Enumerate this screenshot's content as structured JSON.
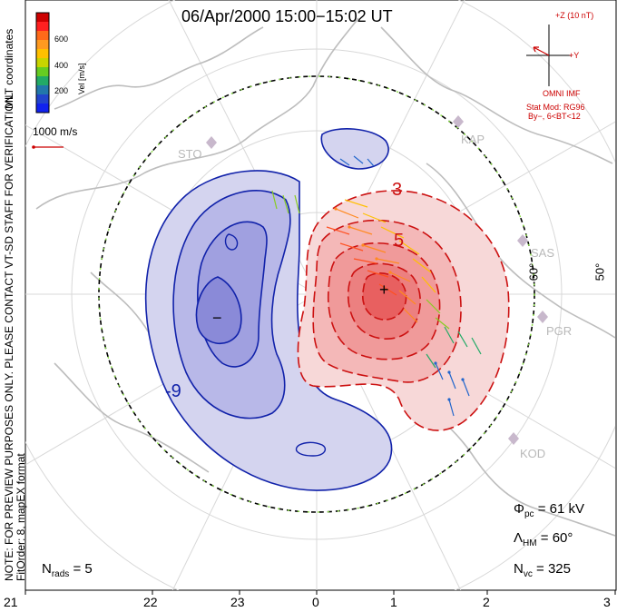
{
  "title": "06/Apr/2000 15:00−15:02 UT",
  "side_note": {
    "line1": "NOTE: FOR PREVIEW PURPOSES ONLY. PLEASE CONTACT VT-SD STAFF FOR VERIFICATION.",
    "line2": "FitOrder: 8, mapEX format"
  },
  "colorbar": {
    "title": "Vel [m/s]",
    "coordinates": "MLT coordinates",
    "ticks": [
      "600",
      "400",
      "200"
    ],
    "colors": [
      "#cc0000",
      "#ff2020",
      "#ff6a1a",
      "#ff9a20",
      "#ffc000",
      "#c8d400",
      "#66cc22",
      "#22aa66",
      "#2277aa",
      "#2244cc",
      "#1122ee"
    ]
  },
  "scale_vector_label": "1000 m/s",
  "imf": {
    "scale": "+Z (10 nT)",
    "y_axis": "+Y",
    "source": "OMNI IMF",
    "model": "Stat Mod: RG96",
    "condition": "By−, 6<BT<12"
  },
  "stations": [
    "STO",
    "KAP",
    "SAS",
    "PGR",
    "KOD"
  ],
  "latitude_labels": [
    "60°",
    "50°"
  ],
  "contour_labels": [
    "3",
    "5",
    "-9"
  ],
  "potential_markers": [
    "+",
    "−"
  ],
  "stats": {
    "phi_pc_symbol": "Φ",
    "phi_pc_sub": "pc",
    "phi_pc_value": "= 61 kV",
    "lambda_hm_symbol": "Λ",
    "lambda_hm_sub": "HM",
    "lambda_hm_value": "= 60°",
    "n_vc_symbol": "N",
    "n_vc_sub": "vc",
    "n_vc_value": "= 325",
    "n_rads_symbol": "N",
    "n_rads_sub": "rads",
    "n_rads_value": "= 5"
  },
  "mlt_axis": [
    "21",
    "22",
    "23",
    "0",
    "1",
    "2",
    "3"
  ]
}
